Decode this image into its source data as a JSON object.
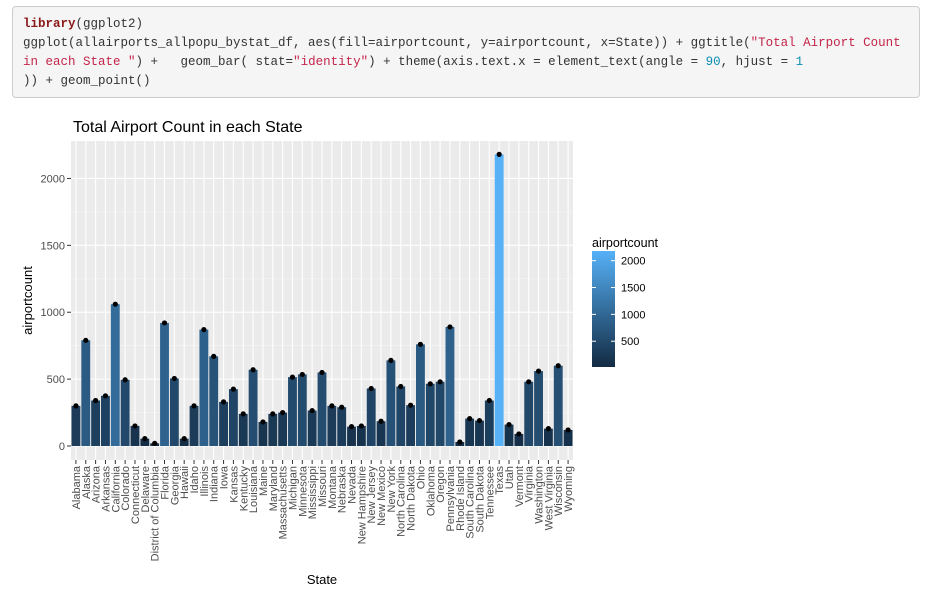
{
  "code": {
    "segments": [
      {
        "t": "library",
        "c": "kw"
      },
      {
        "t": "(ggplot2)\nggplot(allairports_allpopu_bystat_df, aes(fill=airportcount, y=airportcount, x=State)) + ggtitle(",
        "c": ""
      },
      {
        "t": "\"Total Airport Count in each State \"",
        "c": "str"
      },
      {
        "t": ") +   geom_bar( stat=",
        "c": ""
      },
      {
        "t": "\"identity\"",
        "c": "str"
      },
      {
        "t": ") + theme(axis.text.x = element_text(angle = ",
        "c": ""
      },
      {
        "t": "90",
        "c": "num"
      },
      {
        "t": ", hjust = ",
        "c": ""
      },
      {
        "t": "1",
        "c": "num"
      },
      {
        "t": "\n)) + geom_point()",
        "c": ""
      }
    ]
  },
  "colors": {
    "panel_bg": "#ebebeb",
    "grid_major": "#ffffff",
    "grid_minor": "#f5f5f5",
    "low": "#132b43",
    "high": "#56b1f7",
    "point": "#000000",
    "axis_text": "#4d4d4d"
  },
  "chart_data": {
    "type": "bar",
    "title": "Total Airport Count in each State",
    "xlabel": "State",
    "ylabel": "airportcount",
    "ylim": [
      0,
      2280
    ],
    "yticks": [
      0,
      500,
      1000,
      1500,
      2000
    ],
    "grid": true,
    "legend": {
      "title": "airportcount",
      "position": "right",
      "range": [
        20,
        2180
      ],
      "breaks": [
        500,
        1000,
        1500,
        2000
      ]
    },
    "categories": [
      "Alabama",
      "Alaska",
      "Arizona",
      "Arkansas",
      "California",
      "Colorado",
      "Connecticut",
      "Delaware",
      "District of Columbia",
      "Florida",
      "Georgia",
      "Hawaii",
      "Idaho",
      "Illinois",
      "Indiana",
      "Iowa",
      "Kansas",
      "Kentucky",
      "Louisiana",
      "Maine",
      "Maryland",
      "Massachusetts",
      "Michigan",
      "Minnesota",
      "Mississippi",
      "Missouri",
      "Montana",
      "Nebraska",
      "Nevada",
      "New Hampshire",
      "New Jersey",
      "New Mexico",
      "New York",
      "North Carolina",
      "North Dakota",
      "Ohio",
      "Oklahoma",
      "Oregon",
      "Pennsylvania",
      "Rhode Island",
      "South Carolina",
      "South Dakota",
      "Tennessee",
      "Texas",
      "Utah",
      "Vermont",
      "Virginia",
      "Washington",
      "West Virginia",
      "Wisconsin",
      "Wyoming"
    ],
    "values": [
      300,
      790,
      340,
      375,
      1060,
      495,
      150,
      55,
      20,
      920,
      505,
      55,
      300,
      870,
      670,
      330,
      425,
      240,
      570,
      180,
      240,
      250,
      515,
      535,
      265,
      550,
      300,
      290,
      145,
      150,
      430,
      185,
      640,
      445,
      305,
      760,
      465,
      480,
      890,
      30,
      205,
      190,
      340,
      2180,
      160,
      90,
      480,
      560,
      130,
      600,
      120
    ]
  }
}
